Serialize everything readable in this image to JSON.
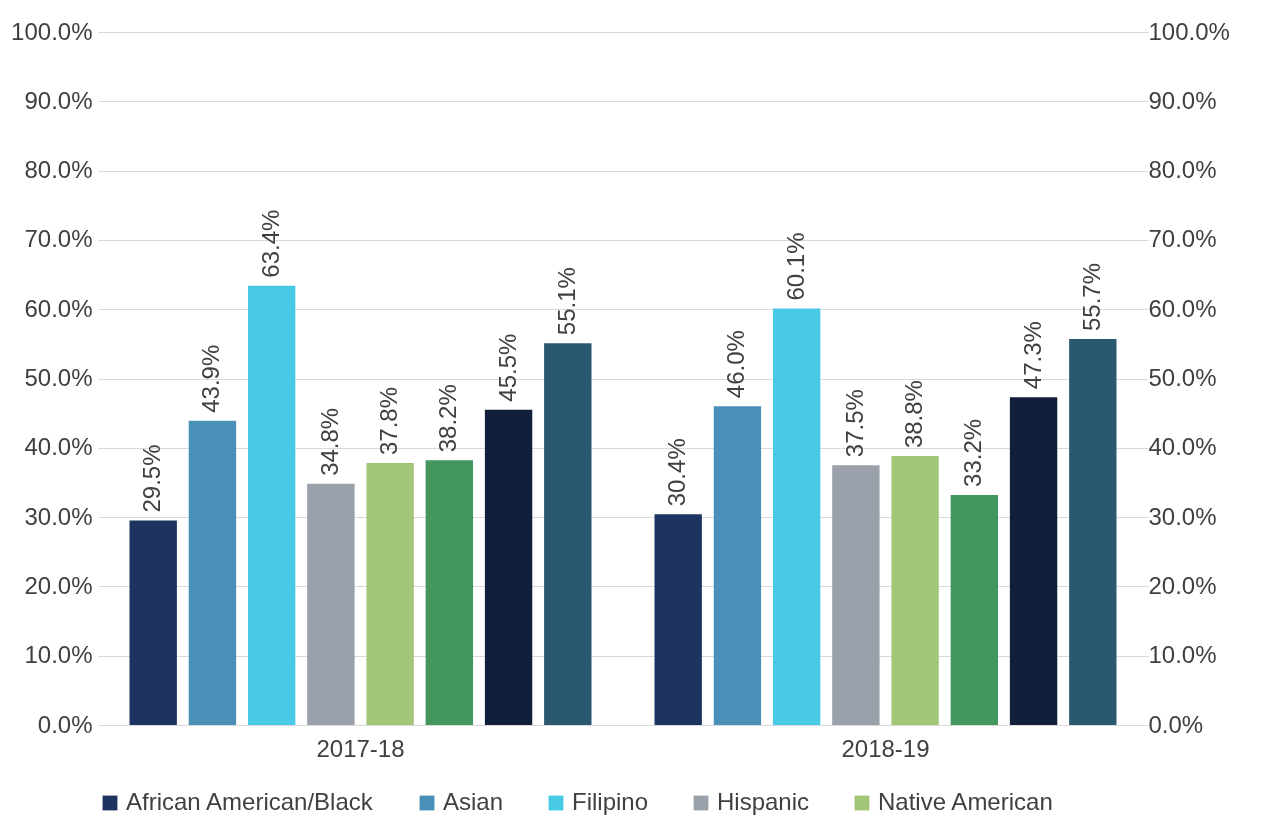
{
  "chart_data": {
    "type": "bar",
    "categories": [
      "2017-18",
      "2018-19"
    ],
    "series": [
      {
        "name": "African American/Black",
        "color": "#1d3461",
        "values": [
          29.5,
          30.4
        ],
        "value_labels": [
          "29.5%",
          "30.4%"
        ]
      },
      {
        "name": "Asian",
        "color": "#4a90b8",
        "values": [
          43.9,
          46.0
        ],
        "value_labels": [
          "43.9%",
          "46.0%"
        ]
      },
      {
        "name": "Filipino",
        "color": "#48c9e6",
        "values": [
          63.4,
          60.1
        ],
        "value_labels": [
          "63.4%",
          "60.1%"
        ]
      },
      {
        "name": "Hispanic",
        "color": "#9aa1aa",
        "values": [
          34.8,
          37.5
        ],
        "value_labels": [
          "34.8%",
          "37.5%"
        ]
      },
      {
        "name": "Native American",
        "color": "#a3c577",
        "values": [
          37.8,
          38.8
        ],
        "value_labels": [
          "37.8%",
          "38.8%"
        ]
      },
      {
        "color": "#43965e",
        "values": [
          38.2,
          33.2
        ],
        "value_labels": [
          "38.2%",
          "33.2%"
        ]
      },
      {
        "color": "#121f3a",
        "values": [
          45.5,
          47.3
        ],
        "value_labels": [
          "45.5%",
          "47.3%"
        ]
      },
      {
        "color": "#2a5870",
        "values": [
          55.1,
          55.7
        ],
        "value_labels": [
          "55.1%",
          "55.7%"
        ]
      }
    ],
    "ylim": [
      0,
      100
    ],
    "yticks": [
      {
        "value": 0,
        "label": "0.0%"
      },
      {
        "value": 10,
        "label": "10.0%"
      },
      {
        "value": 20,
        "label": "20.0%"
      },
      {
        "value": 30,
        "label": "30.0%"
      },
      {
        "value": 40,
        "label": "40.0%"
      },
      {
        "value": 50,
        "label": "50.0%"
      },
      {
        "value": 60,
        "label": "60.0%"
      },
      {
        "value": 70,
        "label": "70.0%"
      },
      {
        "value": 80,
        "label": "80.0%"
      },
      {
        "value": 90,
        "label": "90.0%"
      },
      {
        "value": 100,
        "label": "100.0%"
      }
    ],
    "y2lim": [
      0,
      100
    ],
    "y2ticks": [
      {
        "value": 0,
        "label": "0.0%"
      },
      {
        "value": 10,
        "label": "10.0%"
      },
      {
        "value": 20,
        "label": "20.0%"
      },
      {
        "value": 30,
        "label": "30.0%"
      },
      {
        "value": 40,
        "label": "40.0%"
      },
      {
        "value": 50,
        "label": "50.0%"
      },
      {
        "value": 60,
        "label": "60.0%"
      },
      {
        "value": 70,
        "label": "70.0%"
      },
      {
        "value": 80,
        "label": "80.0%"
      },
      {
        "value": 90,
        "label": "90.0%"
      },
      {
        "value": 100,
        "label": "100.0%"
      }
    ],
    "grid": "y",
    "legend": "bottom"
  }
}
